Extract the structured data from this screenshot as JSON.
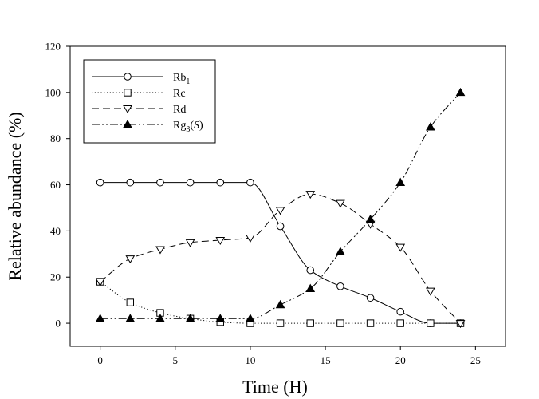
{
  "chart_data": {
    "type": "line",
    "title": "",
    "xlabel": "Time (H)",
    "ylabel": "Relative abundance (%)",
    "xlim": [
      -2,
      27
    ],
    "ylim": [
      -10,
      120
    ],
    "xticks": [
      0,
      5,
      10,
      15,
      20,
      25
    ],
    "yticks": [
      0,
      20,
      40,
      60,
      80,
      100,
      120
    ],
    "grid": false,
    "legend_position": "top-left",
    "x": [
      0,
      2,
      4,
      6,
      8,
      10,
      12,
      14,
      16,
      18,
      20,
      22,
      24
    ],
    "series": [
      {
        "name": "Rb",
        "name_sub": "1",
        "name_italic": "",
        "name_close": "",
        "marker": "circle-open",
        "line": "solid",
        "values": [
          61,
          61,
          61,
          61,
          61,
          61,
          42,
          23,
          16,
          11,
          5,
          0,
          0
        ]
      },
      {
        "name": "Rc",
        "name_sub": "",
        "name_italic": "",
        "name_close": "",
        "marker": "square-open",
        "line": "dotted",
        "values": [
          18,
          9,
          4.5,
          2,
          0.5,
          0,
          0,
          0,
          0,
          0,
          0,
          0,
          0
        ]
      },
      {
        "name": "Rd",
        "name_sub": "",
        "name_italic": "",
        "name_close": "",
        "marker": "triangle-down-open",
        "line": "dashed",
        "values": [
          18,
          28,
          32,
          35,
          36,
          37,
          49,
          56,
          52,
          43,
          33,
          14,
          0
        ]
      },
      {
        "name": "Rg",
        "name_sub": "3",
        "name_italic": "S",
        "name_close": ")",
        "marker": "triangle-up-filled",
        "line": "dashdotdot",
        "values": [
          2,
          2,
          2,
          2,
          2,
          2,
          8,
          15,
          31,
          45,
          61,
          85,
          100
        ]
      }
    ]
  }
}
